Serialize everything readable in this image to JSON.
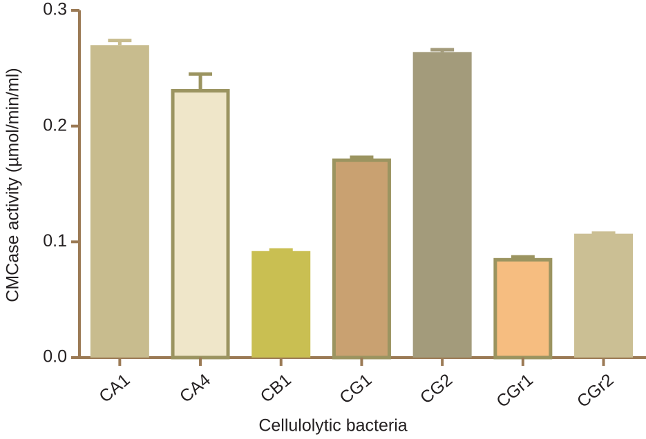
{
  "chart_data": {
    "type": "bar",
    "y_label": "CMCase activity (µmol/min/ml)",
    "x_label": "Cellulolytic bacteria",
    "categories": [
      "CA1",
      "CA4",
      "CB1",
      "CG1",
      "CG2",
      "CGr1",
      "CGr2"
    ],
    "values": [
      0.27,
      0.232,
      0.092,
      0.172,
      0.264,
      0.086,
      0.107
    ],
    "errors": [
      0.004,
      0.013,
      0.001,
      0.001,
      0.002,
      0.001,
      0.0005
    ],
    "colors": [
      "#c8bc8e",
      "#efe6c9",
      "#c9bf52",
      "#c9a171",
      "#a39b7b",
      "#f6bd80",
      "#cbbf94"
    ],
    "edge_colors": [
      null,
      "#9b9460",
      null,
      "#9b9460",
      null,
      "#9b9460",
      null
    ],
    "axis_color": "#9b7a55",
    "ylim": [
      0,
      0.3
    ],
    "yticks": [
      {
        "value": 0,
        "label": "0.0"
      },
      0.1,
      0.2,
      0.3
    ]
  }
}
